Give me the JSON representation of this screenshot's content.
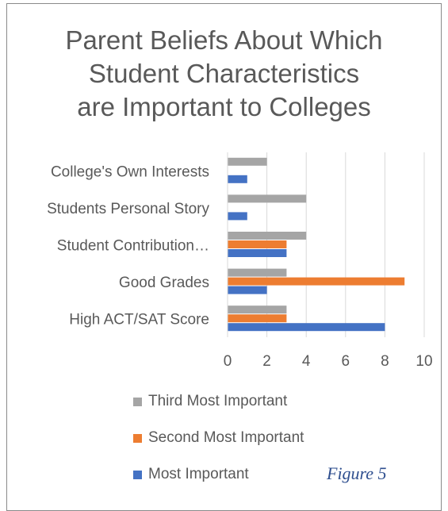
{
  "title_lines": [
    "Parent Beliefs About Which",
    "Student Characteristics",
    "are Important to Colleges"
  ],
  "figure_label": "Figure 5",
  "chart_data": {
    "type": "bar",
    "orientation": "horizontal",
    "title": "Parent Beliefs About Which Student Characteristics are Important to Colleges",
    "categories": [
      "College's Own Interests",
      "Students Personal Story",
      "Student Contribution…",
      "Good Grades",
      "High ACT/SAT Score"
    ],
    "series": [
      {
        "name": "Third Most Important",
        "color": "#a5a5a5",
        "values": [
          2,
          4,
          4,
          3,
          3
        ]
      },
      {
        "name": "Second Most Important",
        "color": "#ed7d31",
        "values": [
          0,
          0,
          3,
          9,
          3
        ]
      },
      {
        "name": "Most Important",
        "color": "#4472c4",
        "values": [
          1,
          1,
          3,
          2,
          8
        ]
      }
    ],
    "xlim": [
      0,
      10
    ],
    "xticks": [
      0,
      2,
      4,
      6,
      8,
      10
    ],
    "grid": true,
    "legend_position": "bottom"
  }
}
